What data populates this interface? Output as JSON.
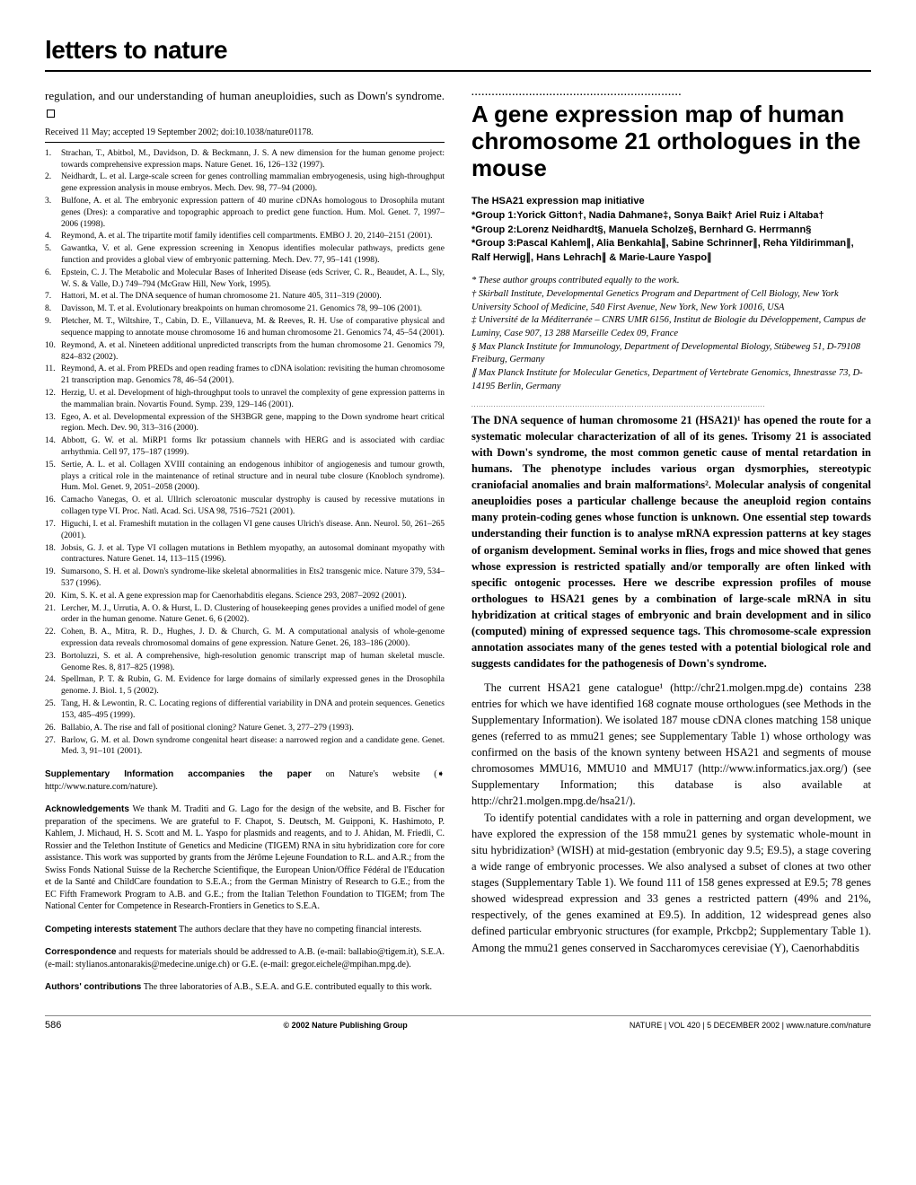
{
  "masthead": "letters to nature",
  "left": {
    "intro": "regulation, and our understanding of human aneuploidies, such as Down's syndrome.",
    "received": "Received 11 May; accepted 19 September 2002; doi:10.1038/nature01178.",
    "refs": [
      "Strachan, T., Abitbol, M., Davidson, D. & Beckmann, J. S. A new dimension for the human genome project: towards comprehensive expression maps. Nature Genet. 16, 126–132 (1997).",
      "Neidhardt, L. et al. Large-scale screen for genes controlling mammalian embryogenesis, using high-throughput gene expression analysis in mouse embryos. Mech. Dev. 98, 77–94 (2000).",
      "Bulfone, A. et al. The embryonic expression pattern of 40 murine cDNAs homologous to Drosophila mutant genes (Dres): a comparative and topographic approach to predict gene function. Hum. Mol. Genet. 7, 1997–2006 (1998).",
      "Reymond, A. et al. The tripartite motif family identifies cell compartments. EMBO J. 20, 2140–2151 (2001).",
      "Gawantka, V. et al. Gene expression screening in Xenopus identifies molecular pathways, predicts gene function and provides a global view of embryonic patterning. Mech. Dev. 77, 95–141 (1998).",
      "Epstein, C. J. The Metabolic and Molecular Bases of Inherited Disease (eds Scriver, C. R., Beaudet, A. L., Sly, W. S. & Valle, D.) 749–794 (McGraw Hill, New York, 1995).",
      "Hattori, M. et al. The DNA sequence of human chromosome 21. Nature 405, 311–319 (2000).",
      "Davisson, M. T. et al. Evolutionary breakpoints on human chromosome 21. Genomics 78, 99–106 (2001).",
      "Pletcher, M. T., Wiltshire, T., Cabin, D. E., Villanueva, M. & Reeves, R. H. Use of comparative physical and sequence mapping to annotate mouse chromosome 16 and human chromosome 21. Genomics 74, 45–54 (2001).",
      "Reymond, A. et al. Nineteen additional unpredicted transcripts from the human chromosome 21. Genomics 79, 824–832 (2002).",
      "Reymond, A. et al. From PREDs and open reading frames to cDNA isolation: revisiting the human chromosome 21 transcription map. Genomics 78, 46–54 (2001).",
      "Herzig, U. et al. Development of high-throughput tools to unravel the complexity of gene expression patterns in the mammalian brain. Novartis Found. Symp. 239, 129–146 (2001).",
      "Egeo, A. et al. Developmental expression of the SH3BGR gene, mapping to the Down syndrome heart critical region. Mech. Dev. 90, 313–316 (2000).",
      "Abbott, G. W. et al. MiRP1 forms Ikr potassium channels with HERG and is associated with cardiac arrhythmia. Cell 97, 175–187 (1999).",
      "Sertie, A. L. et al. Collagen XVIII containing an endogenous inhibitor of angiogenesis and tumour growth, plays a critical role in the maintenance of retinal structure and in neural tube closure (Knobloch syndrome). Hum. Mol. Genet. 9, 2051–2058 (2000).",
      "Camacho Vanegas, O. et al. Ullrich scleroatonic muscular dystrophy is caused by recessive mutations in collagen type VI. Proc. Natl. Acad. Sci. USA 98, 7516–7521 (2001).",
      "Higuchi, I. et al. Frameshift mutation in the collagen VI gene causes Ulrich's disease. Ann. Neurol. 50, 261–265 (2001).",
      "Jobsis, G. J. et al. Type VI collagen mutations in Bethlem myopathy, an autosomal dominant myopathy with contractures. Nature Genet. 14, 113–115 (1996).",
      "Sumarsono, S. H. et al. Down's syndrome-like skeletal abnormalities in Ets2 transgenic mice. Nature 379, 534–537 (1996).",
      "Kim, S. K. et al. A gene expression map for Caenorhabditis elegans. Science 293, 2087–2092 (2001).",
      "Lercher, M. J., Urrutia, A. O. & Hurst, L. D. Clustering of housekeeping genes provides a unified model of gene order in the human genome. Nature Genet. 6, 6 (2002).",
      "Cohen, B. A., Mitra, R. D., Hughes, J. D. & Church, G. M. A computational analysis of whole-genome expression data reveals chromosomal domains of gene expression. Nature Genet. 26, 183–186 (2000).",
      "Bortoluzzi, S. et al. A comprehensive, high-resolution genomic transcript map of human skeletal muscle. Genome Res. 8, 817–825 (1998).",
      "Spellman, P. T. & Rubin, G. M. Evidence for large domains of similarly expressed genes in the Drosophila genome. J. Biol. 1, 5 (2002).",
      "Tang, H. & Lewontin, R. C. Locating regions of differential variability in DNA and protein sequences. Genetics 153, 485–495 (1999).",
      "Ballabio, A. The rise and fall of positional cloning? Nature Genet. 3, 277–279 (1993).",
      "Barlow, G. M. et al. Down syndrome congenital heart disease: a narrowed region and a candidate gene. Genet. Med. 3, 91–101 (2001)."
    ],
    "supp_head": "Supplementary Information accompanies the paper",
    "supp_body": " on Nature's website (➧ http://www.nature.com/nature).",
    "ack_head": "Acknowledgements",
    "ack_body": " We thank M. Traditi and G. Lago for the design of the website, and B. Fischer for preparation of the specimens. We are grateful to F. Chapot, S. Deutsch, M. Guipponi, K. Hashimoto, P. Kahlem, J. Michaud, H. S. Scott and M. L. Yaspo for plasmids and reagents, and to J. Ahidan, M. Friedli, C. Rossier and the Telethon Institute of Genetics and Medicine (TIGEM) RNA in situ hybridization core for core assistance. This work was supported by grants from the Jérôme Lejeune Foundation to R.L. and A.R.; from the Swiss Fonds National Suisse de la Recherche Scientifique, the European Union/Office Fédéral de l'Education et de la Santé and ChildCare foundation to S.E.A.; from the German Ministry of Research to G.E.; from the EC Fifth Framework Program to A.B. and G.E.; from the Italian Telethon Foundation to TIGEM; from The National Center for Competence in Research-Frontiers in Genetics to S.E.A.",
    "competing_head": "Competing interests statement",
    "competing_body": " The authors declare that they have no competing financial interests.",
    "corr_head": "Correspondence",
    "corr_body": " and requests for materials should be addressed to A.B. (e-mail: ballabio@tigem.it), S.E.A. (e-mail: stylianos.antonarakis@medecine.unige.ch) or G.E. (e-mail: gregor.eichele@mpihan.mpg.de).",
    "auth_head": "Authors' contributions",
    "auth_body": " The three laboratories of A.B., S.E.A. and G.E. contributed equally to this work."
  },
  "right": {
    "title": "A gene expression map of human chromosome 21 orthologues in the mouse",
    "byline1": "The HSA21 expression map initiative",
    "byline2": "*Group 1:Yorick Gitton†, Nadia Dahmane‡, Sonya Baik† Ariel Ruiz i Altaba†",
    "byline3": "*Group 2:Lorenz Neidhardt§, Manuela Scholze§, Bernhard G. Herrmann§",
    "byline4": "*Group 3:Pascal Kahlem∥, Alia  Benkahla∥, Sabine Schrinner∥, Reha Yildirimman∥, Ralf Herwig∥, Hans Lehrach∥ & Marie-Laure Yaspo∥",
    "affil1": "* These author groups contributed equally to the work.",
    "affil2": "† Skirball Institute, Developmental Genetics Program and Department of Cell Biology, New York University School of Medicine, 540 First Avenue, New York, New York 10016, USA",
    "affil3": "‡ Université de la Méditerranée – CNRS UMR 6156, Institut de Biologie du Développement, Campus de Luminy, Case 907, 13 288 Marseille Cedex 09, France",
    "affil4": "§ Max Planck Institute for Immunology, Department of Developmental Biology, Stübeweg 51, D-79108 Freiburg, Germany",
    "affil5": "∥ Max Planck Institute for Molecular Genetics, Department of Vertebrate Genomics, Ihnestrasse 73, D-14195 Berlin, Germany",
    "abstract": "The DNA sequence of human chromosome 21 (HSA21)¹ has opened the route for a systematic molecular characterization of all of its genes. Trisomy 21 is associated with Down's syndrome, the most common genetic cause of mental retardation in humans. The phenotype includes various organ dysmorphies, stereotypic craniofacial anomalies and brain malformations². Molecular analysis of congenital aneuploidies poses a particular challenge because the aneuploid region contains many protein-coding genes whose function is unknown. One essential step towards understanding their function is to analyse mRNA expression patterns at key stages of organism development. Seminal works in flies, frogs and mice showed that genes whose expression is restricted spatially and/or temporally are often linked with specific ontogenic processes. Here we describe expression profiles of mouse orthologues to HSA21 genes by a combination of large-scale mRNA in situ hybridization at critical stages of embryonic and brain development and in silico (computed) mining of expressed sequence tags. This chromosome-scale expression annotation associates many of the genes tested with a potential biological role and suggests candidates for the pathogenesis of Down's syndrome.",
    "p1": "The current HSA21 gene catalogue¹ (http://chr21.molgen.mpg.de) contains 238 entries for which we have identified 168 cognate mouse orthologues (see Methods in the Supplementary Information). We isolated 187 mouse cDNA clones matching 158 unique genes (referred to as mmu21 genes; see Supplementary Table 1) whose orthology was confirmed on the basis of the known synteny between HSA21 and segments of mouse chromosomes MMU16, MMU10 and MMU17 (http://www.informatics.jax.org/) (see Supplementary Information; this database is also available at http://chr21.molgen.mpg.de/hsa21/).",
    "p2": "To identify potential candidates with a role in patterning and organ development, we have explored the expression of the 158 mmu21 genes by systematic whole-mount in situ hybridization³ (WISH) at mid-gestation (embryonic day 9.5; E9.5), a stage covering a wide range of embryonic processes. We also analysed a subset of clones at two other stages (Supplementary Table 1). We found 111 of 158 genes expressed at E9.5; 78 genes showed widespread expression and 33 genes a restricted pattern (49% and 21%, respectively, of the genes examined at E9.5). In addition, 12 widespread genes also defined particular embryonic structures (for example, Prkcbp2; Supplementary Table 1). Among the mmu21 genes conserved in Saccharomyces cerevisiae (Y), Caenorhabditis"
  },
  "footer": {
    "page": "586",
    "center": "© 2002 Nature Publishing Group",
    "right": "NATURE | VOL 420 | 5 DECEMBER 2002 | www.nature.com/nature"
  }
}
